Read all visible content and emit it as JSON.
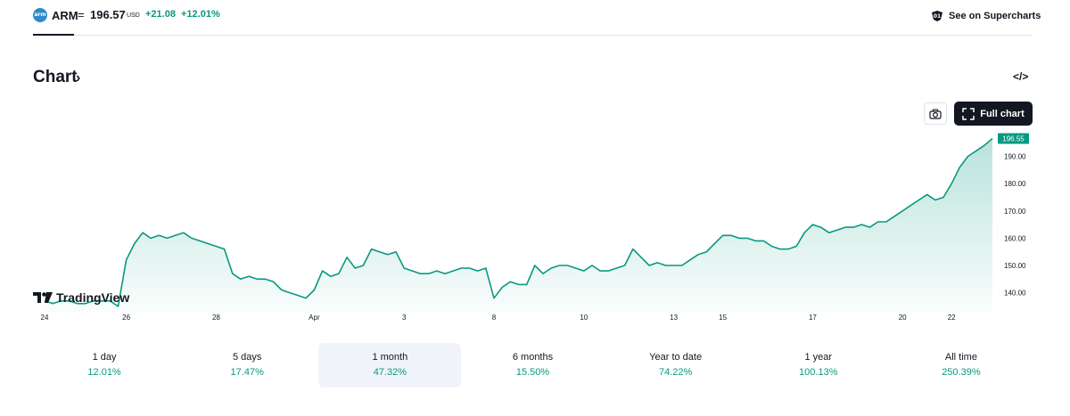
{
  "header": {
    "logo_text": "arm",
    "symbol": "ARM",
    "separator": "=",
    "price": "196.57",
    "currency": "USD",
    "change": "+21.08",
    "change_percent": "+12.01%",
    "supercharts_label": "See on Supercharts"
  },
  "section": {
    "title": "Chart",
    "arrow": "›",
    "embed_icon": "</>"
  },
  "buttons": {
    "full_chart": "Full chart"
  },
  "branding": "TradingView",
  "colors": {
    "line": "#089981",
    "accent": "#089981",
    "dark": "#131722"
  },
  "periods": [
    {
      "label": "1 day",
      "value": "12.01%"
    },
    {
      "label": "5 days",
      "value": "17.47%"
    },
    {
      "label": "1 month",
      "value": "47.32%"
    },
    {
      "label": "6 months",
      "value": "15.50%"
    },
    {
      "label": "Year to date",
      "value": "74.22%"
    },
    {
      "label": "1 year",
      "value": "100.13%"
    },
    {
      "label": "All time",
      "value": "250.39%"
    }
  ],
  "chart_data": {
    "type": "area",
    "last_price_label": "196.55",
    "ylim": [
      133,
      199
    ],
    "y_ticks": [
      140,
      150,
      160,
      170,
      180,
      190
    ],
    "y_tick_labels": [
      "140.00",
      "150.00",
      "160.00",
      "170.00",
      "180.00",
      "190.00"
    ],
    "x_tick_labels": [
      "24",
      "26",
      "28",
      "Apr",
      "3",
      "8",
      "10",
      "13",
      "15",
      "17",
      "20",
      "22"
    ],
    "x_tick_index": [
      0,
      10,
      21,
      33,
      44,
      55,
      66,
      77,
      83,
      94,
      105,
      111
    ],
    "values": [
      137,
      136,
      137,
      137,
      136,
      136,
      137,
      137,
      137,
      135,
      152,
      158,
      162,
      160,
      161,
      160,
      161,
      162,
      160,
      159,
      158,
      157,
      156,
      147,
      145,
      146,
      145,
      145,
      144,
      141,
      140,
      139,
      138,
      141,
      148,
      146,
      147,
      153,
      149,
      150,
      156,
      155,
      154,
      155,
      149,
      148,
      147,
      147,
      148,
      147,
      148,
      149,
      149,
      148,
      149,
      138,
      142,
      144,
      143,
      143,
      150,
      147,
      149,
      150,
      150,
      149,
      148,
      150,
      148,
      148,
      149,
      150,
      156,
      153,
      150,
      151,
      150,
      150,
      150,
      152,
      154,
      155,
      158,
      161,
      161,
      160,
      160,
      159,
      159,
      157,
      156,
      156,
      157,
      162,
      165,
      164,
      162,
      163,
      164,
      164,
      165,
      164,
      166,
      166,
      168,
      170,
      172,
      174,
      176,
      174,
      175,
      180,
      186,
      190,
      192,
      194,
      196.55
    ]
  }
}
